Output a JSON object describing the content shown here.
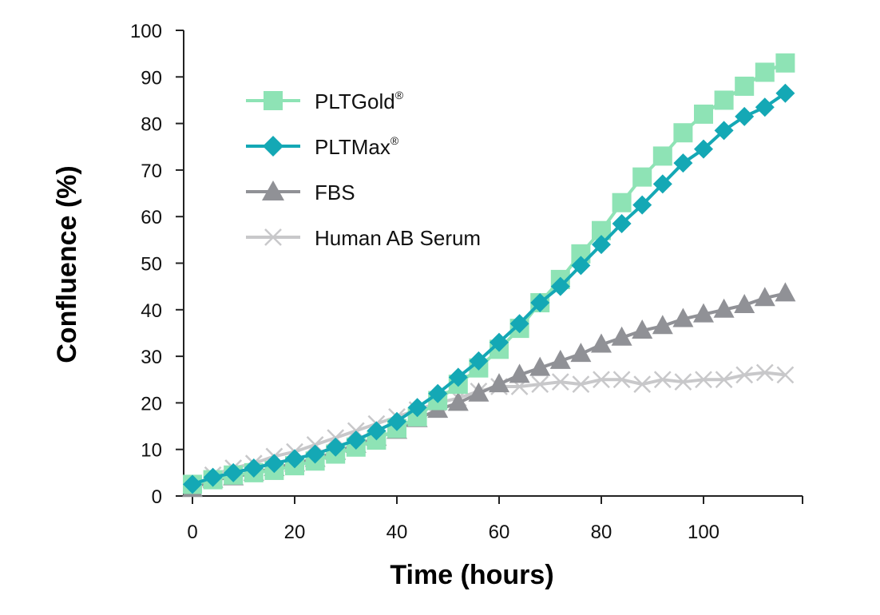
{
  "chart_data": {
    "type": "line",
    "title": "",
    "xlabel": "Time (hours)",
    "ylabel": "Confluence (%)",
    "xlim": [
      0,
      120
    ],
    "ylim": [
      0,
      100
    ],
    "xticks": [
      0,
      20,
      40,
      60,
      80,
      100
    ],
    "yticks": [
      0,
      10,
      20,
      30,
      40,
      50,
      60,
      70,
      80,
      90,
      100
    ],
    "legend_position": "top-left",
    "grid": false,
    "x": [
      0,
      4,
      8,
      12,
      16,
      20,
      24,
      28,
      32,
      36,
      40,
      44,
      48,
      52,
      56,
      60,
      64,
      68,
      72,
      76,
      80,
      84,
      88,
      92,
      96,
      100,
      104,
      108,
      112,
      116
    ],
    "series": [
      {
        "name": "PLTGold",
        "name_sup": "®",
        "marker": "square",
        "color": "#8EE3B5",
        "values": [
          2.5,
          3.5,
          4.5,
          5,
          5.5,
          6.5,
          7.5,
          9,
          10.5,
          12,
          14.5,
          17,
          20.5,
          24,
          27.5,
          31.5,
          36,
          41.5,
          46.5,
          52,
          57,
          63,
          68.5,
          73,
          78,
          82,
          85,
          88,
          91,
          93
        ]
      },
      {
        "name": "PLTMax",
        "name_sup": "®",
        "marker": "diamond",
        "color": "#14A8B5",
        "values": [
          2.5,
          4,
          5,
          6,
          7,
          8,
          9,
          10.5,
          12,
          14,
          16,
          19,
          22,
          25.5,
          29,
          33,
          37,
          41.5,
          45,
          49.5,
          54,
          58.5,
          62.5,
          67,
          71.5,
          74.5,
          78.5,
          81.5,
          83.5,
          86.5
        ]
      },
      {
        "name": "FBS",
        "name_sup": "",
        "marker": "triangle",
        "color": "#909196",
        "values": [
          1.5,
          3.5,
          4,
          5,
          6,
          7,
          8,
          9.5,
          11,
          12.5,
          14,
          16.5,
          18.5,
          20,
          22,
          24,
          26,
          27.5,
          29,
          30.5,
          32.5,
          34,
          35.5,
          36.5,
          38,
          39,
          40,
          41,
          42.5,
          43.5
        ]
      },
      {
        "name": "Human AB Serum",
        "name_sup": "",
        "marker": "x",
        "color": "#C8C8CA",
        "values": [
          2,
          4.5,
          6,
          7,
          8.5,
          9.5,
          11,
          12.5,
          14,
          15.5,
          17,
          18.5,
          20,
          21,
          22.5,
          23.5,
          23.5,
          24,
          24.5,
          24,
          25,
          25,
          24,
          25,
          24.5,
          25,
          25,
          26,
          26.5,
          26
        ]
      }
    ]
  }
}
